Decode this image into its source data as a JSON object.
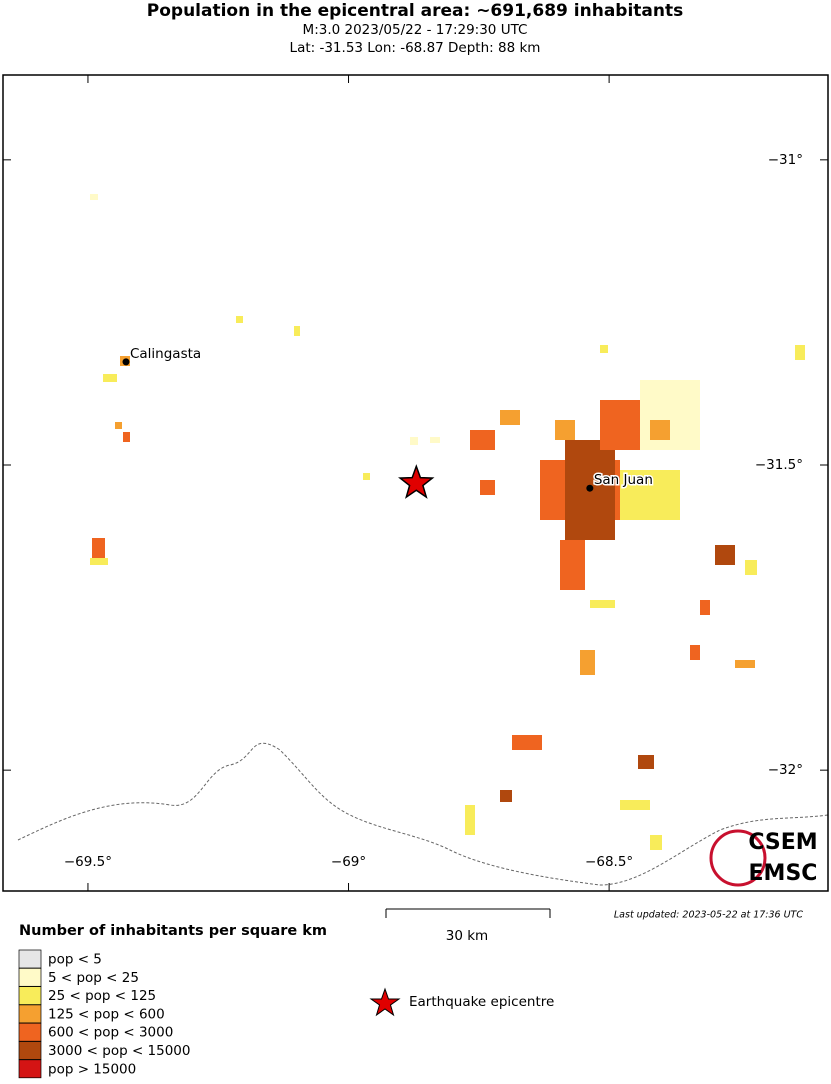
{
  "header": {
    "title": "Population in the epicentral area: ~691,689 inhabitants",
    "line2": "M:3.0 2023/05/22 - 17:29:30 UTC",
    "line3": "Lat: -31.53 Lon: -68.87 Depth: 88 km"
  },
  "map": {
    "lonlim": [
      -69.663,
      -68.08
    ],
    "latlim": [
      -32.198,
      -30.861
    ],
    "lon_ticks": [
      {
        "value": -69.5,
        "label": "−69.5°"
      },
      {
        "value": -69,
        "label": "−69°"
      },
      {
        "value": -68.5,
        "label": "−68.5°"
      }
    ],
    "lat_ticks": [
      {
        "value": -31,
        "label": "−31°"
      },
      {
        "value": -31.5,
        "label": "−31.5°"
      },
      {
        "value": -32,
        "label": "−32°"
      }
    ],
    "places": [
      {
        "name": "Calingasta",
        "lat": -31.331,
        "lon": -69.427
      },
      {
        "name": "San Juan",
        "lat": -31.538,
        "lon": -68.537
      }
    ],
    "epicenter": {
      "lat": -31.53,
      "lon": -68.87
    }
  },
  "scale_bar": "30 km",
  "updated": "Last updated: 2023-05-22 at 17:36 UTC",
  "logo": {
    "top": "CSEM",
    "bottom": "EMSC"
  },
  "legend": {
    "title": "Number of inhabitants per square km",
    "items": [
      {
        "label": "pop < 5",
        "color": "#e6e6e6"
      },
      {
        "label": "5 < pop < 25",
        "color": "#fffac8"
      },
      {
        "label": "25 < pop < 125",
        "color": "#f8ec5a"
      },
      {
        "label": "125 < pop < 600",
        "color": "#f5a030"
      },
      {
        "label": "600 < pop < 3000",
        "color": "#ef6420"
      },
      {
        "label": "3000 < pop < 15000",
        "color": "#b0480e"
      },
      {
        "label": "pop > 15000",
        "color": "#d41414"
      }
    ],
    "epicentre": "Earthquake epicentre"
  }
}
